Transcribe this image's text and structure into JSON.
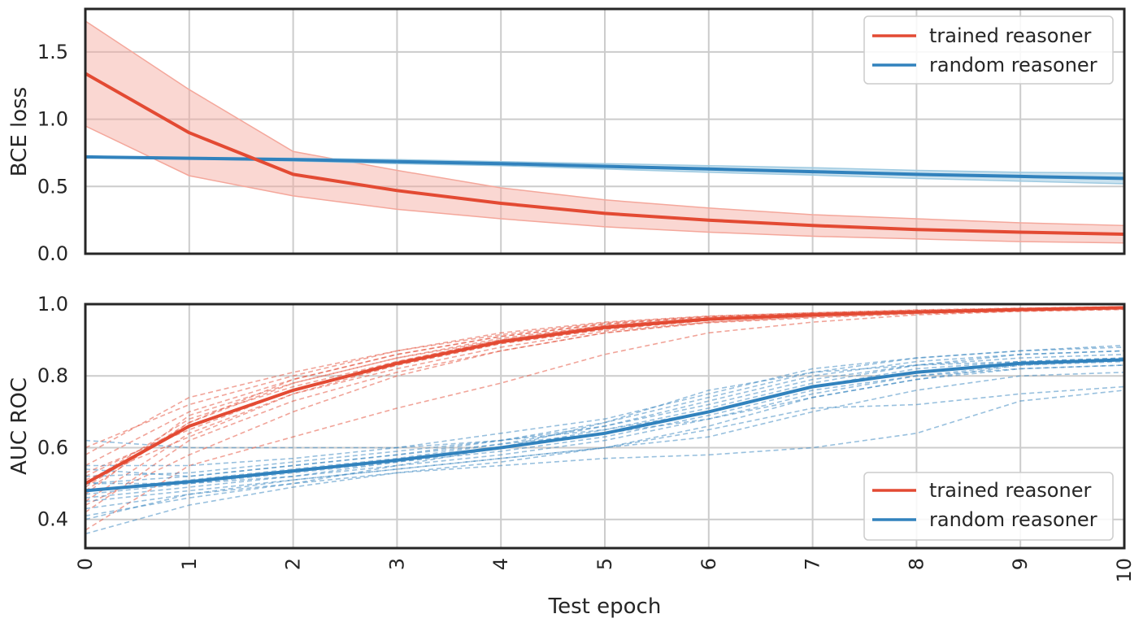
{
  "colors": {
    "trained": "#e34a33",
    "random": "#3182bd",
    "band_trained": "#f4a79b",
    "band_random": "#9ecae1",
    "grid": "#cccccc",
    "axes": "#262626"
  },
  "x_axis": {
    "label": "Test epoch",
    "ticks": [
      "0",
      "1",
      "2",
      "3",
      "4",
      "5",
      "6",
      "7",
      "8",
      "9",
      "10"
    ]
  },
  "legend_top": [
    "trained reasoner",
    "random reasoner"
  ],
  "legend_bottom": [
    "trained reasoner",
    "random reasoner"
  ],
  "chart_data": [
    {
      "type": "line",
      "ylabel": "BCE loss",
      "xlim": [
        0,
        10
      ],
      "ylim": [
        0,
        1.82
      ],
      "yticks": [
        "0.0",
        "0.5",
        "1.0",
        "1.5"
      ],
      "grid": true,
      "legend_position": "top-right",
      "x": [
        0,
        1,
        2,
        3,
        4,
        5,
        6,
        7,
        8,
        9,
        10
      ],
      "series": [
        {
          "name": "trained reasoner",
          "values": [
            1.34,
            0.9,
            0.59,
            0.47,
            0.375,
            0.3,
            0.25,
            0.21,
            0.18,
            0.16,
            0.145
          ],
          "lower": [
            0.95,
            0.58,
            0.43,
            0.33,
            0.26,
            0.2,
            0.16,
            0.13,
            0.11,
            0.09,
            0.08
          ],
          "upper": [
            1.73,
            1.22,
            0.76,
            0.62,
            0.49,
            0.4,
            0.34,
            0.29,
            0.26,
            0.23,
            0.21
          ]
        },
        {
          "name": "random reasoner",
          "values": [
            0.72,
            0.71,
            0.7,
            0.685,
            0.67,
            0.65,
            0.63,
            0.61,
            0.59,
            0.575,
            0.56
          ],
          "lower": [
            0.715,
            0.705,
            0.69,
            0.67,
            0.655,
            0.63,
            0.605,
            0.585,
            0.56,
            0.54,
            0.52
          ],
          "upper": [
            0.725,
            0.715,
            0.71,
            0.7,
            0.685,
            0.67,
            0.655,
            0.64,
            0.62,
            0.605,
            0.6
          ]
        }
      ]
    },
    {
      "type": "line",
      "ylabel": "AUC ROC",
      "xlabel": "Test epoch",
      "xlim": [
        0,
        10
      ],
      "ylim": [
        0.32,
        1.0
      ],
      "yticks": [
        "0.4",
        "0.6",
        "0.8",
        "1.0"
      ],
      "grid": true,
      "legend_position": "bottom-right",
      "x": [
        0,
        1,
        2,
        3,
        4,
        5,
        6,
        7,
        8,
        9,
        10
      ],
      "series": [
        {
          "name": "trained reasoner",
          "values": [
            0.5,
            0.66,
            0.76,
            0.835,
            0.895,
            0.935,
            0.958,
            0.97,
            0.978,
            0.985,
            0.99
          ],
          "runs": [
            [
              0.52,
              0.66,
              0.76,
              0.83,
              0.89,
              0.93,
              0.955,
              0.97,
              0.978,
              0.985,
              0.99
            ],
            [
              0.48,
              0.67,
              0.78,
              0.85,
              0.9,
              0.94,
              0.96,
              0.972,
              0.98,
              0.986,
              0.99
            ],
            [
              0.55,
              0.7,
              0.79,
              0.86,
              0.91,
              0.945,
              0.965,
              0.975,
              0.982,
              0.988,
              0.992
            ],
            [
              0.45,
              0.64,
              0.75,
              0.82,
              0.88,
              0.925,
              0.95,
              0.965,
              0.975,
              0.983,
              0.988
            ],
            [
              0.5,
              0.68,
              0.77,
              0.84,
              0.9,
              0.94,
              0.96,
              0.97,
              0.98,
              0.985,
              0.99
            ],
            [
              0.6,
              0.72,
              0.8,
              0.87,
              0.92,
              0.95,
              0.967,
              0.976,
              0.984,
              0.989,
              0.993
            ],
            [
              0.42,
              0.62,
              0.73,
              0.81,
              0.87,
              0.92,
              0.948,
              0.962,
              0.973,
              0.98,
              0.986
            ],
            [
              0.53,
              0.65,
              0.76,
              0.84,
              0.9,
              0.935,
              0.958,
              0.97,
              0.978,
              0.985,
              0.99
            ],
            [
              0.47,
              0.69,
              0.78,
              0.85,
              0.905,
              0.94,
              0.962,
              0.973,
              0.98,
              0.986,
              0.99
            ],
            [
              0.58,
              0.74,
              0.81,
              0.87,
              0.915,
              0.948,
              0.966,
              0.976,
              0.983,
              0.988,
              0.992
            ],
            [
              0.37,
              0.55,
              0.63,
              0.71,
              0.78,
              0.86,
              0.92,
              0.95,
              0.97,
              0.98,
              0.985
            ],
            [
              0.44,
              0.58,
              0.7,
              0.8,
              0.87,
              0.92,
              0.95,
              0.965,
              0.975,
              0.982,
              0.987
            ],
            [
              0.51,
              0.63,
              0.75,
              0.83,
              0.89,
              0.93,
              0.955,
              0.968,
              0.977,
              0.984,
              0.989
            ],
            [
              0.49,
              0.67,
              0.79,
              0.86,
              0.91,
              0.944,
              0.963,
              0.974,
              0.981,
              0.987,
              0.991
            ]
          ]
        },
        {
          "name": "random reasoner",
          "values": [
            0.48,
            0.505,
            0.535,
            0.565,
            0.6,
            0.64,
            0.7,
            0.77,
            0.81,
            0.835,
            0.845
          ],
          "runs": [
            [
              0.5,
              0.52,
              0.55,
              0.58,
              0.62,
              0.66,
              0.72,
              0.79,
              0.83,
              0.85,
              0.86
            ],
            [
              0.46,
              0.49,
              0.52,
              0.55,
              0.58,
              0.62,
              0.68,
              0.75,
              0.8,
              0.83,
              0.84
            ],
            [
              0.62,
              0.6,
              0.6,
              0.6,
              0.62,
              0.65,
              0.7,
              0.77,
              0.82,
              0.84,
              0.85
            ],
            [
              0.36,
              0.44,
              0.49,
              0.53,
              0.56,
              0.6,
              0.66,
              0.74,
              0.79,
              0.82,
              0.83
            ],
            [
              0.4,
              0.47,
              0.51,
              0.54,
              0.57,
              0.6,
              0.63,
              0.7,
              0.76,
              0.8,
              0.81
            ],
            [
              0.55,
              0.55,
              0.57,
              0.6,
              0.64,
              0.68,
              0.75,
              0.82,
              0.85,
              0.87,
              0.88
            ],
            [
              0.5,
              0.5,
              0.52,
              0.56,
              0.6,
              0.65,
              0.71,
              0.78,
              0.83,
              0.86,
              0.87
            ],
            [
              0.43,
              0.47,
              0.5,
              0.53,
              0.55,
              0.57,
              0.58,
              0.6,
              0.64,
              0.73,
              0.76
            ],
            [
              0.48,
              0.51,
              0.54,
              0.57,
              0.61,
              0.66,
              0.73,
              0.8,
              0.84,
              0.86,
              0.87
            ],
            [
              0.45,
              0.48,
              0.51,
              0.54,
              0.57,
              0.6,
              0.65,
              0.71,
              0.72,
              0.75,
              0.77
            ],
            [
              0.52,
              0.53,
              0.56,
              0.59,
              0.62,
              0.67,
              0.74,
              0.81,
              0.85,
              0.87,
              0.885
            ],
            [
              0.47,
              0.5,
              0.53,
              0.56,
              0.59,
              0.63,
              0.69,
              0.76,
              0.8,
              0.82,
              0.83
            ],
            [
              0.41,
              0.46,
              0.5,
              0.55,
              0.6,
              0.67,
              0.76,
              0.81,
              0.83,
              0.84,
              0.85
            ],
            [
              0.54,
              0.52,
              0.55,
              0.58,
              0.61,
              0.64,
              0.68,
              0.74,
              0.79,
              0.83,
              0.845
            ]
          ]
        }
      ]
    }
  ]
}
